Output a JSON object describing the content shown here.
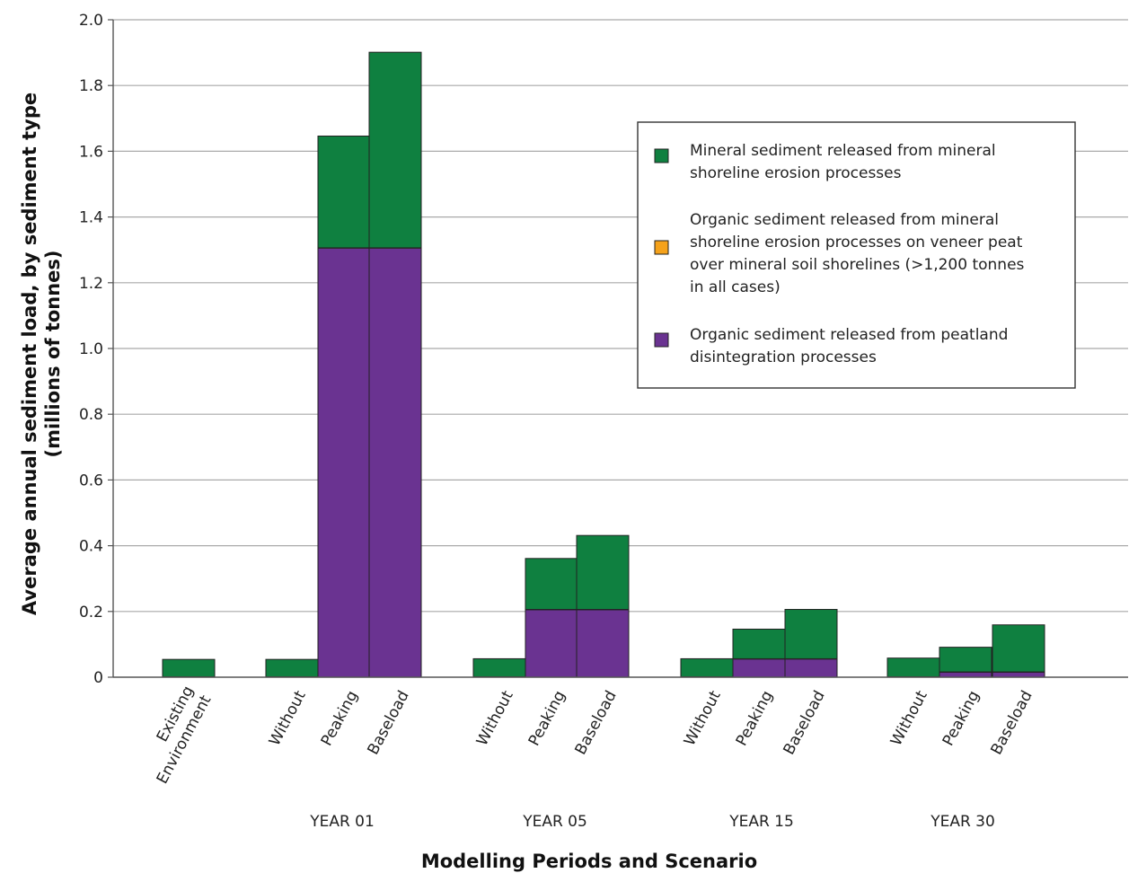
{
  "chart_data": {
    "type": "bar",
    "stacked": true,
    "ylabel_lines": [
      "Average annual sediment load, by sediment type",
      "(millions of tonnes)"
    ],
    "xlabel": "Modelling Periods and Scenario",
    "ylim": [
      0,
      2.0
    ],
    "yticks": [
      "0",
      "0.2",
      "0.4",
      "0.6",
      "0.8",
      "1.0",
      "1.2",
      "1.4",
      "1.6",
      "1.8",
      "2.0"
    ],
    "grid": true,
    "legend_position": "upper-right",
    "categories": [
      {
        "label_lines": [
          "Existing",
          "Environment"
        ],
        "group": ""
      },
      {
        "label_lines": [
          "Without"
        ],
        "group": "YEAR 01"
      },
      {
        "label_lines": [
          "Peaking"
        ],
        "group": "YEAR 01"
      },
      {
        "label_lines": [
          "Baseload"
        ],
        "group": "YEAR 01"
      },
      {
        "label_lines": [
          "Without"
        ],
        "group": "YEAR 05"
      },
      {
        "label_lines": [
          "Peaking"
        ],
        "group": "YEAR 05"
      },
      {
        "label_lines": [
          "Baseload"
        ],
        "group": "YEAR 05"
      },
      {
        "label_lines": [
          "Without"
        ],
        "group": "YEAR 15"
      },
      {
        "label_lines": [
          "Peaking"
        ],
        "group": "YEAR 15"
      },
      {
        "label_lines": [
          "Baseload"
        ],
        "group": "YEAR 15"
      },
      {
        "label_lines": [
          "Without"
        ],
        "group": "YEAR 30"
      },
      {
        "label_lines": [
          "Peaking"
        ],
        "group": "YEAR 30"
      },
      {
        "label_lines": [
          "Baseload"
        ],
        "group": "YEAR 30"
      }
    ],
    "groups": [
      "YEAR 01",
      "YEAR 05",
      "YEAR 15",
      "YEAR 30"
    ],
    "series": [
      {
        "name": "Organic sediment released from peatland disintegration processes",
        "color": "#6a3391",
        "values": [
          0,
          0,
          1.305,
          1.305,
          0,
          0.205,
          0.205,
          0,
          0.055,
          0.055,
          0,
          0.015,
          0.015
        ]
      },
      {
        "name": "Organic sediment released from mineral shoreline erosion processes on veneer peat over mineral soil shorelines (>1,200 tonnes in all cases)",
        "color": "#f5a21b",
        "values": [
          0.0012,
          0.0012,
          0.0012,
          0.0012,
          0.0012,
          0.0012,
          0.0012,
          0.0012,
          0.0012,
          0.0012,
          0.0012,
          0.0012,
          0.0012
        ]
      },
      {
        "name": "Mineral sediment released from mineral shoreline erosion processes",
        "color": "#0f8040",
        "values": [
          0.053,
          0.053,
          0.34,
          0.595,
          0.055,
          0.155,
          0.225,
          0.055,
          0.09,
          0.15,
          0.057,
          0.075,
          0.143
        ]
      }
    ],
    "legend": [
      {
        "label_lines": [
          "Mineral sediment released from mineral",
          "shoreline erosion processes"
        ],
        "color": "#0f8040"
      },
      {
        "label_lines": [
          "Organic sediment released from mineral",
          "shoreline erosion processes on veneer peat",
          "over mineral soil shorelines (>1,200 tonnes",
          "in all cases)"
        ],
        "color": "#f5a21b"
      },
      {
        "label_lines": [
          "Organic sediment released from peatland",
          "disintegration processes"
        ],
        "color": "#6a3391"
      }
    ]
  }
}
